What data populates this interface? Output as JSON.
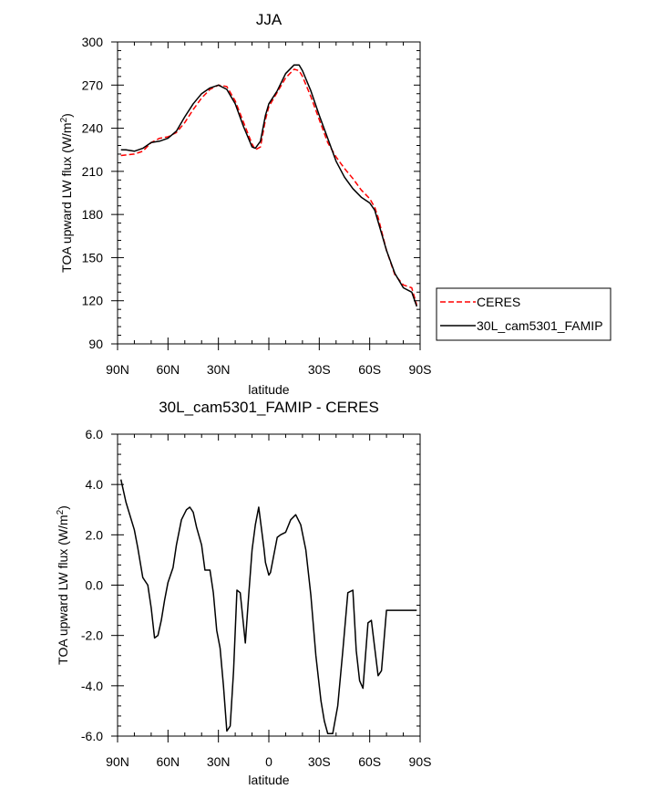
{
  "chart_data": [
    {
      "type": "line",
      "title": "JJA",
      "xlabel": "latitude",
      "ylabel": "TOA upward LW flux (W/m",
      "ylabel_sup": "2",
      "ylabel_end": ")",
      "xlim": [
        90,
        -90
      ],
      "ylim": [
        90,
        300
      ],
      "xticks": [
        90,
        60,
        30,
        0,
        -30,
        -60,
        -90
      ],
      "xtick_labels": [
        "90N",
        "60N",
        "30N",
        "",
        "30S",
        "60S",
        "90S"
      ],
      "yticks": [
        90,
        120,
        150,
        180,
        210,
        240,
        270,
        300
      ],
      "ytick_labels": [
        "90",
        "120",
        "150",
        "180",
        "210",
        "240",
        "270",
        "300"
      ],
      "legend": "outside-right",
      "series": [
        {
          "name": "CERES",
          "color": "#ff0000",
          "dash": "dashed",
          "x": [
            88,
            80,
            75,
            70,
            65,
            60,
            55,
            50,
            45,
            40,
            35,
            30,
            25,
            20,
            15,
            10,
            8,
            5,
            2,
            0,
            -5,
            -10,
            -15,
            -18,
            -20,
            -25,
            -30,
            -35,
            -40,
            -45,
            -50,
            -55,
            -60,
            -63,
            -65,
            -70,
            -75,
            -80,
            -85,
            -88
          ],
          "y": [
            221,
            222,
            224,
            230,
            233,
            234,
            237,
            244,
            253,
            261,
            267,
            270,
            269,
            259,
            244,
            229,
            225,
            227,
            246,
            255,
            265,
            275,
            281,
            280,
            276,
            262,
            246,
            230,
            220,
            212,
            205,
            197,
            191,
            185,
            178,
            155,
            138,
            131,
            129,
            117
          ]
        },
        {
          "name": "30L_cam5301_FAMIP",
          "color": "#000000",
          "dash": "solid",
          "x": [
            88,
            85,
            80,
            75,
            70,
            65,
            60,
            55,
            50,
            45,
            40,
            35,
            30,
            25,
            20,
            15,
            10,
            8,
            5,
            2,
            0,
            -5,
            -10,
            -15,
            -18,
            -20,
            -25,
            -30,
            -35,
            -40,
            -45,
            -50,
            -55,
            -60,
            -63,
            -65,
            -70,
            -75,
            -80,
            -85,
            -88
          ],
          "y": [
            225,
            225,
            224,
            226,
            230,
            231,
            233,
            238,
            248,
            257,
            264,
            268,
            270,
            267,
            257,
            241,
            227,
            226,
            231,
            249,
            257,
            266,
            278,
            284,
            284,
            280,
            266,
            249,
            233,
            217,
            206,
            198,
            192,
            188,
            183,
            175,
            155,
            139,
            129,
            126,
            116
          ]
        }
      ]
    },
    {
      "type": "line",
      "title": "30L_cam5301_FAMIP - CERES",
      "xlabel": "latitude",
      "ylabel": "TOA upward LW flux (W/m",
      "ylabel_sup": "2",
      "ylabel_end": ")",
      "xlim": [
        90,
        -90
      ],
      "ylim": [
        -6,
        6
      ],
      "xticks": [
        90,
        60,
        30,
        0,
        -30,
        -60,
        -90
      ],
      "xtick_labels": [
        "90N",
        "60N",
        "30N",
        "0",
        "30S",
        "60S",
        "90S"
      ],
      "yticks": [
        -6,
        -4,
        -2,
        0,
        2,
        4,
        6
      ],
      "ytick_labels": [
        "-6.0",
        "-4.0",
        "-2.0",
        "0.0",
        "2.0",
        "4.0",
        "6.0"
      ],
      "series": [
        {
          "color": "#000000",
          "dash": "solid",
          "x": [
            88,
            85,
            80,
            78,
            75,
            72,
            70,
            68,
            66,
            64,
            62,
            60,
            57,
            55,
            52,
            49,
            47,
            45,
            43,
            40,
            38,
            35,
            33,
            31,
            29,
            27,
            25,
            23,
            21,
            19,
            17,
            14,
            12,
            10,
            8,
            6,
            3,
            2,
            0,
            -1,
            -3,
            -5,
            -7,
            -10,
            -13,
            -16,
            -19,
            -22,
            -25,
            -28,
            -31,
            -33,
            -35,
            -38,
            -41,
            -44,
            -47,
            -50,
            -52,
            -54,
            -56,
            -59,
            -61,
            -63,
            -65,
            -67,
            -70,
            -73,
            -76,
            -78,
            -80,
            -83,
            -85,
            -88
          ],
          "y": [
            4.2,
            3.3,
            2.2,
            1.5,
            0.3,
            0.0,
            -0.9,
            -2.1,
            -2.0,
            -1.4,
            -0.6,
            0.1,
            0.7,
            1.6,
            2.6,
            3.0,
            3.1,
            2.9,
            2.3,
            1.6,
            0.6,
            0.6,
            -0.3,
            -1.8,
            -2.5,
            -4.0,
            -5.8,
            -5.6,
            -3.4,
            -0.2,
            -0.3,
            -2.3,
            -0.4,
            1.4,
            2.4,
            3.1,
            1.5,
            0.9,
            0.4,
            0.5,
            1.2,
            1.9,
            2.0,
            2.1,
            2.6,
            2.8,
            2.4,
            1.4,
            -0.4,
            -2.8,
            -4.6,
            -5.4,
            -5.9,
            -5.9,
            -4.8,
            -2.6,
            -0.3,
            -0.2,
            -2.6,
            -3.8,
            -4.1,
            -1.5,
            -1.4,
            -2.5,
            -3.6,
            -3.4,
            -1.0,
            -1.0,
            -1.0,
            -1.0,
            -1.0,
            -1.0,
            -1.0,
            -1.0
          ]
        }
      ]
    }
  ]
}
